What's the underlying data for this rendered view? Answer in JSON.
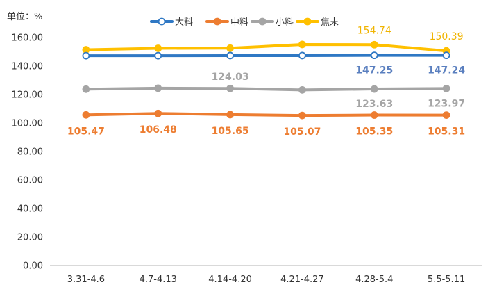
{
  "chart_data": {
    "type": "line",
    "unit_label": "单位：%",
    "categories": [
      "3.31-4.6",
      "4.7-4.13",
      "4.14-4.20",
      "4.21-4.27",
      "4.28-5.4",
      "5.5-5.11"
    ],
    "ylim": [
      0,
      160
    ],
    "yticks": [
      "0.00",
      "20.00",
      "40.00",
      "60.00",
      "80.00",
      "100.00",
      "120.00",
      "140.00",
      "160.00"
    ],
    "grid": false,
    "legend_position": "top",
    "series": [
      {
        "name": "大料",
        "color": "#2f78c4",
        "marker_fill": "#ffffff",
        "values": [
          147.0,
          147.0,
          147.1,
          147.1,
          147.25,
          147.24
        ],
        "labels": [
          null,
          null,
          null,
          null,
          "147.25",
          "147.24"
        ],
        "label_color": "#5a7fbf"
      },
      {
        "name": "中料",
        "color": "#ed7d31",
        "marker_fill": "#ed7d31",
        "values": [
          105.47,
          106.48,
          105.65,
          105.07,
          105.35,
          105.31
        ],
        "labels": [
          "105.47",
          "106.48",
          "105.65",
          "105.07",
          "105.35",
          "105.31"
        ],
        "label_color": "#ed7d31"
      },
      {
        "name": "小料",
        "color": "#a5a5a5",
        "marker_fill": "#a5a5a5",
        "values": [
          123.5,
          124.2,
          124.03,
          123.0,
          123.63,
          123.97
        ],
        "labels": [
          null,
          null,
          "124.03",
          null,
          "123.63",
          "123.97"
        ],
        "label_color": "#a5a5a5"
      },
      {
        "name": "焦末",
        "color": "#ffc000",
        "marker_fill": "#ffc000",
        "values": [
          151.2,
          152.2,
          152.3,
          154.9,
          154.74,
          150.39
        ],
        "labels": [
          null,
          null,
          null,
          null,
          "154.74",
          "150.39"
        ],
        "label_color": "#f0b400"
      }
    ]
  }
}
